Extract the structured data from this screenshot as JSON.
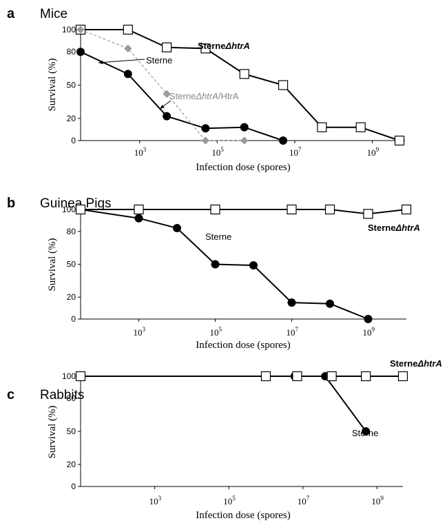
{
  "chart_data": [
    {
      "panel": "a",
      "type": "line",
      "title": "Mice",
      "xlabel": "Infection dose (spores)",
      "ylabel": "Survival (%)",
      "xscale": "log",
      "xlim": [
        10,
        1000000000
      ],
      "ylim": [
        0,
        100
      ],
      "yticks": [
        0,
        20,
        50,
        80,
        100
      ],
      "xticks": [
        {
          "base": "10",
          "exp": "3",
          "value": 1000
        },
        {
          "base": "10",
          "exp": "5",
          "value": 100000
        },
        {
          "base": "10",
          "exp": "7",
          "value": 10000000
        },
        {
          "base": "10",
          "exp": "9",
          "value": 1000000000
        }
      ],
      "series": [
        {
          "label": "Sterne",
          "marker": "filled-circle",
          "color": "#000000",
          "x": [
            30,
            500,
            5000,
            50000,
            500000,
            5000000
          ],
          "y": [
            80,
            60,
            22,
            11,
            12,
            0
          ]
        },
        {
          "label_main": "Sterne",
          "label_italic": "ΔhtrA",
          "marker": "open-square",
          "color": "#000000",
          "x": [
            30,
            500,
            5000,
            50000,
            500000,
            5000000,
            50000000,
            500000000,
            5000000000
          ],
          "y": [
            100,
            100,
            84,
            83,
            60,
            50,
            12,
            12,
            0
          ]
        },
        {
          "label_main": "Sterne",
          "label_italic": "ΔhtrA",
          "label_suffix": "/HtrA",
          "marker": "gray-diamond",
          "color": "#999999",
          "x": [
            30,
            500,
            5000,
            50000,
            500000
          ],
          "y": [
            100,
            83,
            42,
            0,
            0
          ]
        }
      ]
    },
    {
      "panel": "b",
      "type": "line",
      "title": "Guinea Pigs",
      "xlabel": "Infection dose (spores)",
      "ylabel": "Survival (%)",
      "xscale": "log",
      "ylim": [
        0,
        100
      ],
      "yticks": [
        0,
        20,
        50,
        80,
        100
      ],
      "xticks": [
        {
          "base": "10",
          "exp": "3",
          "value": 1000
        },
        {
          "base": "10",
          "exp": "5",
          "value": 100000
        },
        {
          "base": "10",
          "exp": "7",
          "value": 10000000
        },
        {
          "base": "10",
          "exp": "9",
          "value": 1000000000
        }
      ],
      "series": [
        {
          "label": "Sterne",
          "marker": "filled-circle",
          "color": "#000000",
          "x": [
            30,
            1000,
            10000,
            100000,
            1000000,
            10000000,
            100000000,
            1000000000
          ],
          "y": [
            100,
            92,
            83,
            50,
            49,
            15,
            14,
            0
          ]
        },
        {
          "label_main": "Sterne",
          "label_italic": "ΔhtrA",
          "marker": "open-square",
          "color": "#000000",
          "x": [
            30,
            1000,
            100000,
            10000000,
            100000000,
            1000000000,
            10000000000
          ],
          "y": [
            100,
            100,
            100,
            100,
            100,
            96,
            100
          ]
        }
      ]
    },
    {
      "panel": "c",
      "type": "line",
      "title": "Rabbits",
      "xlabel": "Infection dose (spores)",
      "ylabel": "Survival (%)",
      "xscale": "log",
      "ylim": [
        0,
        100
      ],
      "yticks": [
        0,
        20,
        50,
        80,
        100
      ],
      "xticks": [
        {
          "base": "10",
          "exp": "3",
          "value": 1000
        },
        {
          "base": "10",
          "exp": "5",
          "value": 100000
        },
        {
          "base": "10",
          "exp": "7",
          "value": 10000000
        },
        {
          "base": "10",
          "exp": "9",
          "value": 1000000000
        }
      ],
      "series": [
        {
          "label": "Sterne",
          "marker": "filled-circle",
          "color": "#000000",
          "x": [
            10,
            1000000,
            6000000,
            40000000,
            500000000
          ],
          "y": [
            100,
            100,
            100,
            100,
            50
          ]
        },
        {
          "label_main": "Sterne",
          "label_italic": "ΔhtrA",
          "marker": "open-square",
          "color": "#000000",
          "x": [
            10,
            1000000,
            7000000,
            60000000,
            500000000,
            5000000000
          ],
          "y": [
            100,
            100,
            100,
            100,
            100,
            100
          ]
        }
      ]
    }
  ]
}
